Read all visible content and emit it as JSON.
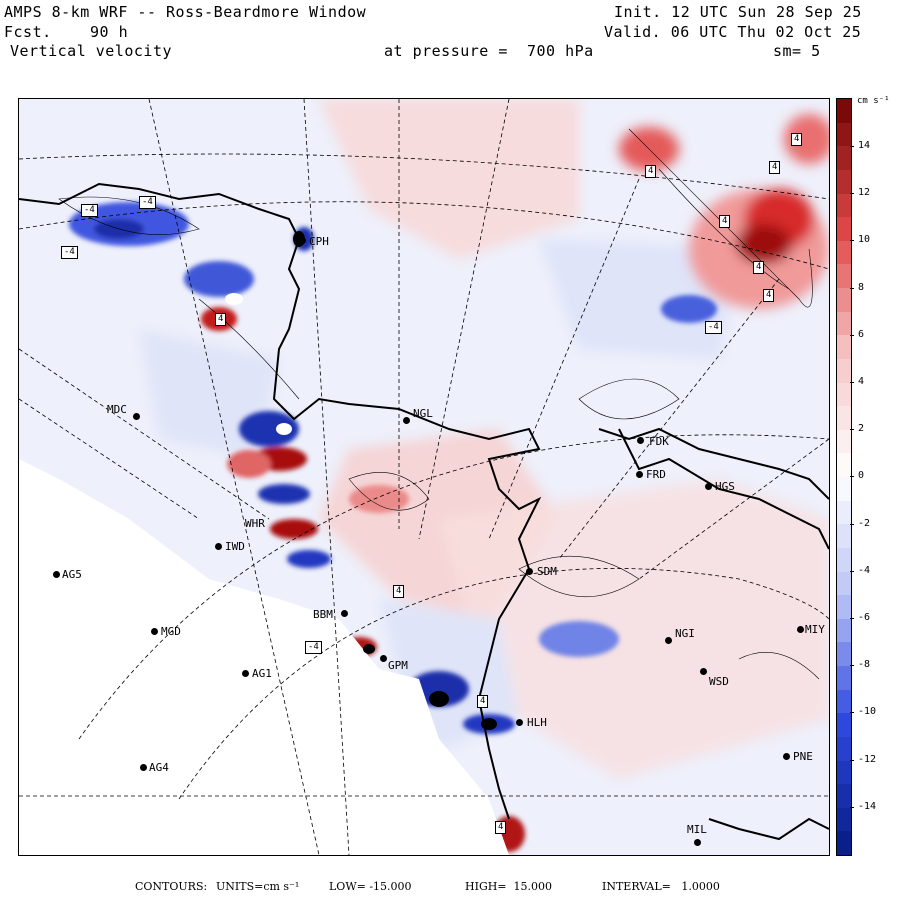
{
  "header": {
    "title": "AMPS 8-km WRF -- Ross-Beardmore Window",
    "fcst_label": "Fcst.",
    "fcst_value": "90 h",
    "field": "Vertical velocity",
    "init": "Init. 12 UTC Sun 28 Sep 25",
    "valid": "Valid. 06 UTC Thu 02 Oct 25",
    "pressure": "at pressure =  700 hPa",
    "smoothing": "sm= 5"
  },
  "colorbar": {
    "units": "cm s⁻¹",
    "ticks": [
      "14",
      "12",
      "10",
      "8",
      "6",
      "4",
      "2",
      "0",
      "-2",
      "-4",
      "-6",
      "-8",
      "-10",
      "-12",
      "-14"
    ],
    "colors": {
      "neg_strong": "#0a1f8a",
      "neg_mid": "#2f49e0",
      "neg_light": "#b9c2f5",
      "zero": "#ffffff",
      "pos_light": "#f6c7c7",
      "pos_mid": "#e04848",
      "pos_strong": "#7a0a0a"
    }
  },
  "stations": [
    {
      "name": "CPH"
    },
    {
      "name": "MDC"
    },
    {
      "name": "NGL"
    },
    {
      "name": "FDK"
    },
    {
      "name": "FRD"
    },
    {
      "name": "MGD"
    },
    {
      "name": "AG5"
    },
    {
      "name": "IWD"
    },
    {
      "name": "WHR"
    },
    {
      "name": "SDM"
    },
    {
      "name": "BBM"
    },
    {
      "name": "GPM"
    },
    {
      "name": "AG1"
    },
    {
      "name": "AG4"
    },
    {
      "name": "NGI"
    },
    {
      "name": "WSD"
    },
    {
      "name": "HLH"
    },
    {
      "name": "PNE"
    },
    {
      "name": "HGS"
    },
    {
      "name": "MIY"
    },
    {
      "name": "MIL"
    }
  ],
  "contour_labels": [
    "-4",
    "-4",
    "-4",
    "4",
    "4",
    "4",
    "4",
    "4",
    "-4",
    "4",
    "-4",
    "4",
    "4",
    "4",
    "4"
  ],
  "footer": {
    "contours_label": "CONTOURS:",
    "units": "UNITS=cm s⁻¹",
    "low": "LOW= -15.000",
    "high": "HIGH=  15.000",
    "interval": "INTERVAL=   1.0000"
  }
}
